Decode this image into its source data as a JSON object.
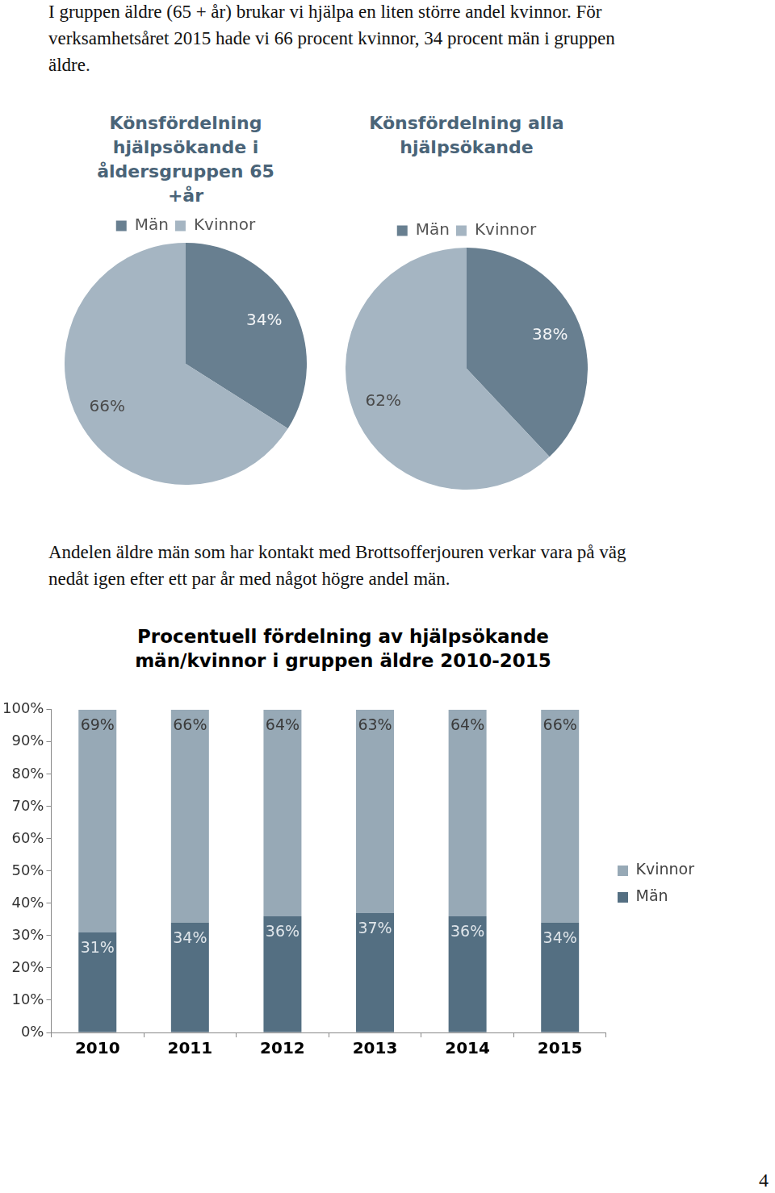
{
  "texts": {
    "intro": "I gruppen äldre (65 + år) brukar vi hjälpa en liten större andel kvinnor. För verksamhetsåret 2015 hade vi 66 procent kvinnor, 34 procent män i gruppen äldre.",
    "middle": "Andelen äldre män som har kontakt med Brottsofferjouren verkar vara på väg nedåt igen efter ett par år med något högre andel män.",
    "page_number": "4"
  },
  "chart_data": [
    {
      "type": "pie",
      "title": "Könsfördelning hjälpsökande i åldersgruppen 65 +år",
      "categories": [
        "Män",
        "Kvinnor"
      ],
      "values": [
        34,
        66
      ],
      "value_labels": [
        "34%",
        "66%"
      ],
      "colors": [
        "#687f90",
        "#a5b5c2"
      ],
      "legend": "top",
      "data_labels": true
    },
    {
      "type": "pie",
      "title": "Könsfördelning alla hjälpsökande",
      "categories": [
        "Män",
        "Kvinnor"
      ],
      "values": [
        38,
        62
      ],
      "value_labels": [
        "38%",
        "62%"
      ],
      "colors": [
        "#687f90",
        "#a5b5c2"
      ],
      "legend": "top",
      "data_labels": true
    },
    {
      "type": "bar",
      "stacked": true,
      "title": "Procentuell fördelning av hjälpsökande män/kvinnor i gruppen äldre 2010-2015",
      "categories": [
        "2010",
        "2011",
        "2012",
        "2013",
        "2014",
        "2015"
      ],
      "series": [
        {
          "name": "Män",
          "color": "#546f82",
          "values": [
            31,
            34,
            36,
            37,
            36,
            34
          ],
          "value_labels": [
            "31%",
            "34%",
            "36%",
            "37%",
            "36%",
            "34%"
          ]
        },
        {
          "name": "Kvinnor",
          "color": "#97a9b6",
          "values": [
            69,
            66,
            64,
            63,
            64,
            66
          ],
          "value_labels": [
            "69%",
            "66%",
            "64%",
            "63%",
            "64%",
            "66%"
          ]
        }
      ],
      "ylim": [
        0,
        100
      ],
      "yticks": [
        {
          "value": 0,
          "label": "0%"
        },
        {
          "value": 10,
          "label": "10%"
        },
        {
          "value": 20,
          "label": "20%"
        },
        {
          "value": 30,
          "label": "30%"
        },
        {
          "value": 40,
          "label": "40%"
        },
        {
          "value": 50,
          "label": "50%"
        },
        {
          "value": 60,
          "label": "60%"
        },
        {
          "value": 70,
          "label": "70%"
        },
        {
          "value": 80,
          "label": "80%"
        },
        {
          "value": 90,
          "label": "90%"
        },
        {
          "value": 100,
          "label": "100%"
        }
      ],
      "grid": false,
      "legend": "right",
      "data_labels": true
    }
  ]
}
